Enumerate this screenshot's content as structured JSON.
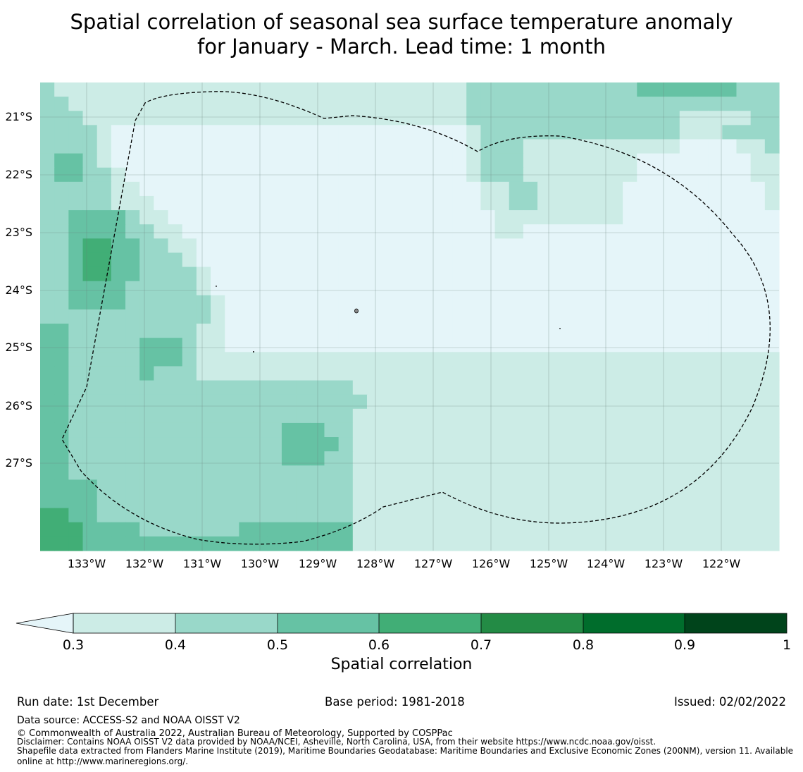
{
  "title": {
    "line1": "Spatial correlation of seasonal sea surface temperature anomaly",
    "line2": "for January - March. Lead time: 1 month"
  },
  "map": {
    "lat_labels": [
      "21°S",
      "22°S",
      "23°S",
      "24°S",
      "25°S",
      "26°S",
      "27°S"
    ],
    "lon_labels": [
      "133°W",
      "132°W",
      "131°W",
      "130°W",
      "129°W",
      "128°W",
      "127°W",
      "126°W",
      "125°W",
      "124°W",
      "123°W",
      "122°W"
    ],
    "extent": {
      "lon_min": -133.8,
      "lon_max": -121.0,
      "lat_max": -20.6,
      "lat_min": -28.7
    },
    "grid_cols": 52,
    "grid_rows": 33,
    "field_legend": "0 = below 0.3, 1 = 0.3-0.4, 2 = 0.4-0.5, 3 = 0.5-0.6, 4 = 0.6-0.7",
    "field": [
      "2111111111111111111111111111112222222222223333333222",
      "2211111111111111111111111111112222222222222222222222",
      "2221111111111111111111111111112222222222222221111122",
      "2222100000000000000000000000001222222222222221112222",
      "2222100000000000000000000000001222111111111110000112",
      "2332100000000000000000000000001222111111110000000011",
      "2332210000000000000000000000001222111111110000000011",
      "2222211000000000000000000000000112211111100000000001",
      "2222211100000000000000000000000112211111100000000001",
      "2233332110000000000000000000000011111111100000000000",
      "2233332211000000000000000000000011000000000000000000",
      "2234433221100000000000000000000000000000000000000000",
      "2234433222100000000000000000000000000000000000000000",
      "2234433222210000000000000000000000000000000000000000",
      "2233332222210000000000000000000000000000000000000000",
      "2233332222221000000000000000000000000000000000000000",
      "2222222222221000000000000000000000000000000000000000",
      "3322222222211000000000000000000000000000000000000000",
      "3322222333211000000000000000000000000000000000000000",
      "3322222333211111111111111111111111111111111111111111",
      "3322222322211111111111111111111111111111111111111111",
      "3322222222222222222222111111111111111111111111111111",
      "3322222222222222222222211111111111111111111111111111",
      "3322222222222222222222111111111111111111111111111111",
      "3322222222222222233322111111111111111111111111111111",
      "3322222222222222233332111111111111111111111111111111",
      "3322222222222222233322111111111111111111111111111111",
      "3322222222222222222222111111111111111111111111111111",
      "3333222222222222222222111111111111111111111111111111",
      "3333222222222222222222111111111111111111111111111111",
      "4433222222222222222222111111111111111111111111111111",
      "4443333222222233333333111111111111111111111111111111",
      "4443333333333333333333111111111111111111111111111111"
    ]
  },
  "colorbar": {
    "ticks": [
      "0.3",
      "0.4",
      "0.5",
      "0.6",
      "0.7",
      "0.8",
      "0.9",
      "1"
    ],
    "colors": [
      "#e5f5f9",
      "#ccece6",
      "#99d8c9",
      "#66c2a4",
      "#41ae76",
      "#238b45",
      "#006d2c",
      "#00441b"
    ],
    "label": "Spatial correlation"
  },
  "footer": {
    "run_date": "Run date: 1st December",
    "base_period": "Base period: 1981-2018",
    "issued": "Issued: 02/02/2022",
    "data_source": "Data source: ACCESS-S2 and NOAA OISST V2",
    "copyright": "© Commonwealth of Australia 2022, Australian Bureau of Meteorology, Supported by COSPPac",
    "disclaimer": "Disclaimer: Contains NOAA OISST V2 data provided by NOAA/NCEI, Asheville, North Carolina, USA, from their website https://www.ncdc.noaa.gov/oisst.",
    "shapefile_line1": "Shapefile data extracted from Flanders Marine Institute (2019), Maritime Boundaries Geodatabase: Maritime Boundaries and Exclusive Economic Zones (200NM), version 11. Available",
    "shapefile_line2": "online at http://www.marineregions.org/."
  }
}
